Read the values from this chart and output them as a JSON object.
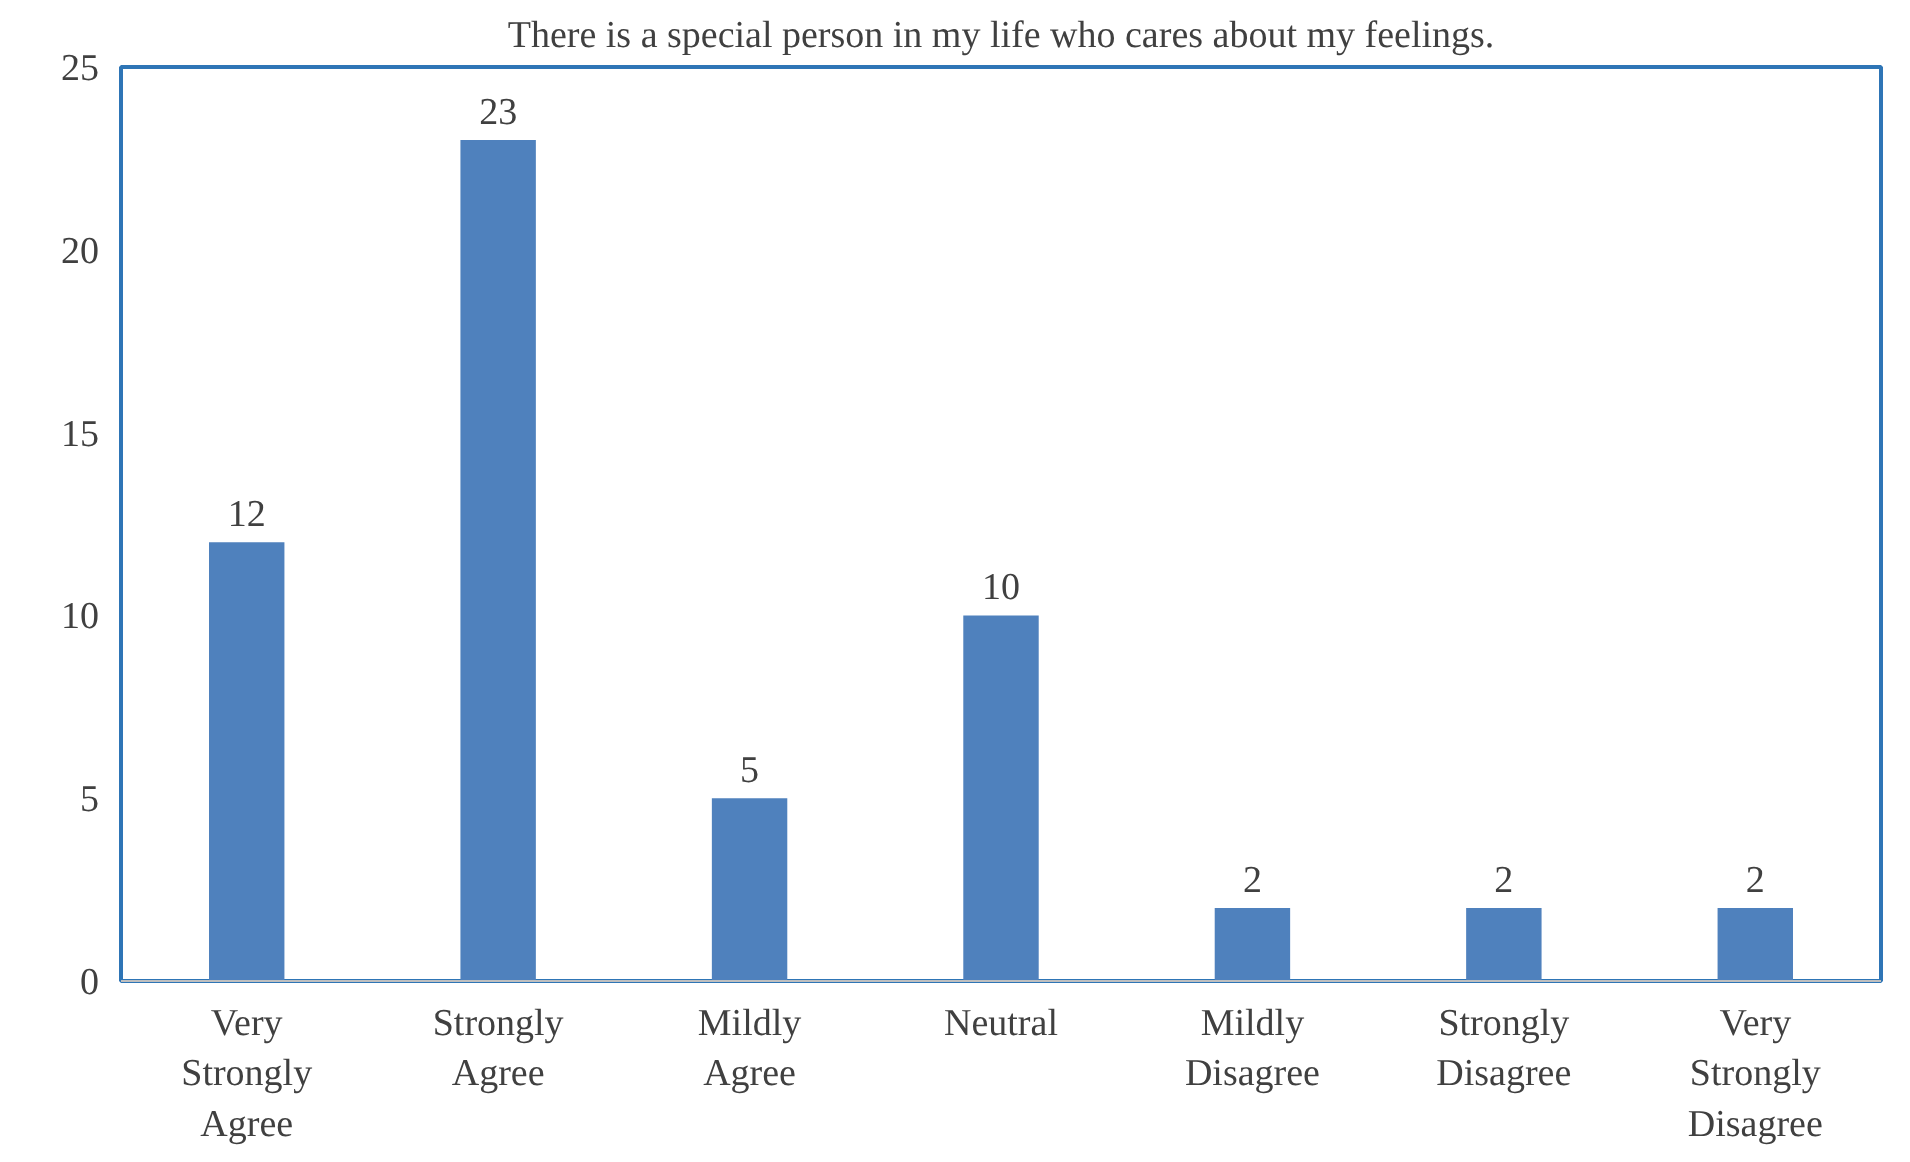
{
  "chart_data": {
    "type": "bar",
    "title": "There is a special person in my life who cares about my feelings.",
    "categories": [
      "Very Strongly Agree",
      "Strongly Agree",
      "Mildly Agree",
      "Neutral",
      "Mildly Disagree",
      "Strongly Disagree",
      "Very Strongly Disagree"
    ],
    "values": [
      12,
      23,
      5,
      10,
      2,
      2,
      2
    ],
    "color": "#4f81bd",
    "ylim": [
      0,
      25
    ],
    "yticks": [
      0,
      5,
      10,
      15,
      20,
      25
    ],
    "data_labels": true,
    "grid": false
  }
}
